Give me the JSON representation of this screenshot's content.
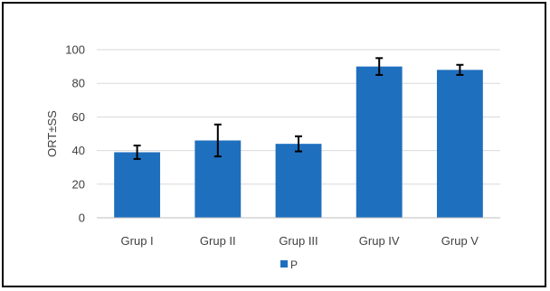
{
  "chart_data": {
    "type": "bar",
    "title": "",
    "xlabel": "",
    "ylabel": "ORT±SS",
    "categories": [
      "Grup I",
      "Grup II",
      "Grup III",
      "Grup IV",
      "Grup V"
    ],
    "series": [
      {
        "name": "P",
        "values": [
          39,
          46,
          44,
          90,
          88
        ],
        "error": [
          4,
          9.5,
          4.5,
          5,
          3
        ],
        "color": "#1f6fbf"
      }
    ],
    "ylim": [
      0,
      100
    ],
    "yticks": [
      0,
      20,
      40,
      60,
      80,
      100
    ],
    "grid": true,
    "legend": "bottom-center"
  }
}
